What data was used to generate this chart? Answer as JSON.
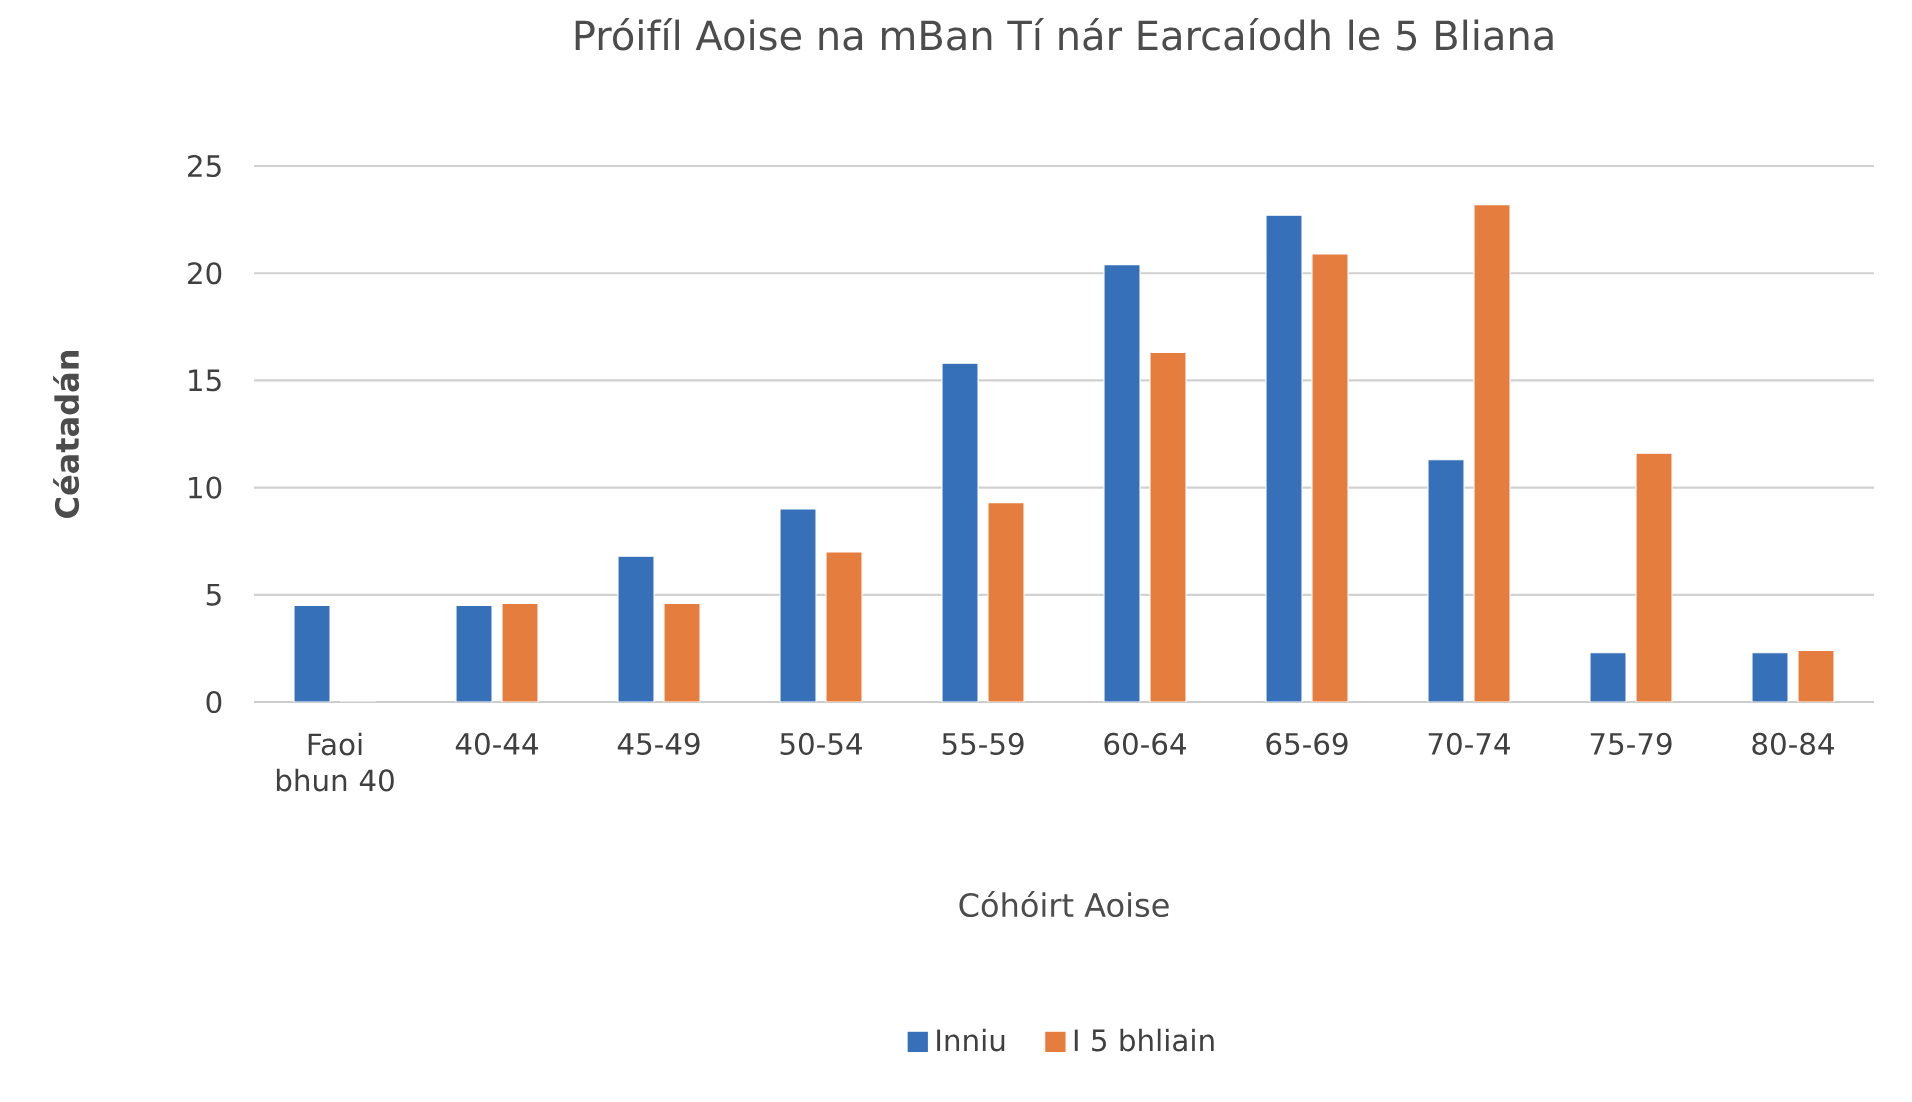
{
  "chart_data": {
    "type": "bar",
    "title": "Próifíl Aoise na mBan Tí nár Earcaíodh le 5 Bliana",
    "xlabel": "Cóhóirt Aoise",
    "ylabel": "Céatadán",
    "categories": [
      "Faoi bhun 40",
      "40-44",
      "45-49",
      "50-54",
      "55-59",
      "60-64",
      "65-69",
      "70-74",
      "75-79",
      "80-84"
    ],
    "series": [
      {
        "name": "Inniu",
        "color": "#3570b8",
        "values": [
          4.5,
          4.5,
          6.8,
          9.0,
          15.8,
          20.4,
          22.7,
          11.3,
          2.3,
          2.3
        ]
      },
      {
        "name": "I 5 bhliain",
        "color": "#e47d3e",
        "values": [
          0,
          4.6,
          4.6,
          7.0,
          9.3,
          16.3,
          20.9,
          23.2,
          11.6,
          2.4
        ]
      }
    ],
    "ylim": [
      0,
      25
    ],
    "yticks": [
      0,
      5,
      10,
      15,
      20,
      25
    ],
    "grid": "y",
    "legend": "bottom"
  }
}
